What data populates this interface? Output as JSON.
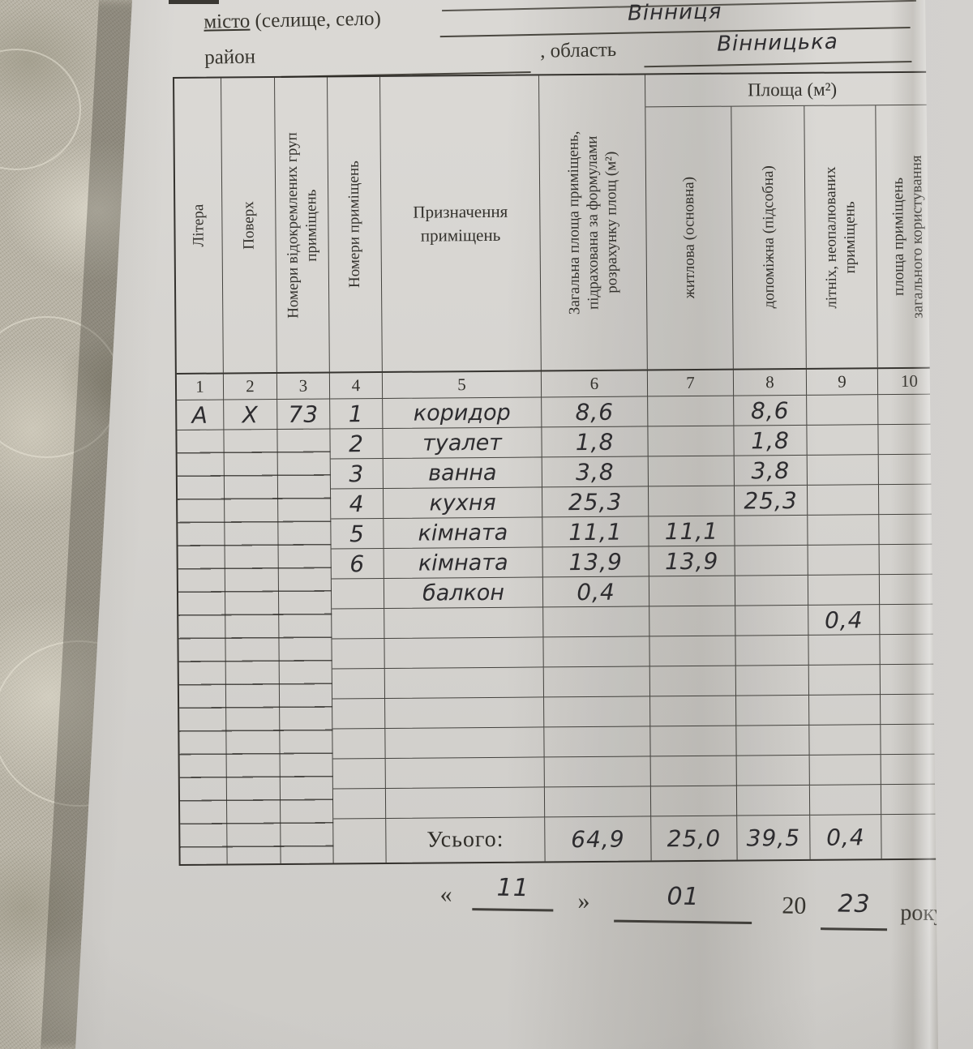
{
  "header": {
    "city_label_underlined": "місто",
    "city_label_rest": " (селище, село)",
    "city_value": "Вінниця",
    "district_label": "район",
    "oblast_label": ", область",
    "oblast_value": "Вінницька"
  },
  "table": {
    "area_group_header": "Площа (м²)",
    "col_numbers": [
      "1",
      "2",
      "3",
      "4",
      "5",
      "6",
      "7",
      "8",
      "9",
      "10"
    ],
    "col_labels": [
      "Літера",
      "Поверх",
      "Номери відокремлених груп приміщень",
      "Номери приміщень",
      "Призначення приміщень",
      "Загальна площа приміщень, підрахована за формулами розрахунку площ (м²)",
      "житлова (основна)",
      "допоміжна (підсобна)",
      "літніх, неопалюваних приміщень",
      "площа приміщень загального користування"
    ],
    "rows": [
      [
        "А",
        "Х",
        "73",
        "1",
        "коридор",
        "8,6",
        "",
        "8,6",
        "",
        ""
      ],
      [
        "",
        "",
        "",
        "2",
        "туалет",
        "1,8",
        "",
        "1,8",
        "",
        ""
      ],
      [
        "",
        "",
        "",
        "3",
        "ванна",
        "3,8",
        "",
        "3,8",
        "",
        ""
      ],
      [
        "",
        "",
        "",
        "4",
        "кухня",
        "25,3",
        "",
        "25,3",
        "",
        ""
      ],
      [
        "",
        "",
        "",
        "5",
        "кімната",
        "11,1",
        "11,1",
        "",
        "",
        ""
      ],
      [
        "",
        "",
        "",
        "6",
        "кімната",
        "13,9",
        "13,9",
        "",
        "",
        ""
      ],
      [
        "",
        "",
        "",
        "",
        "балкон",
        "0,4",
        "",
        "",
        "",
        ""
      ],
      [
        "",
        "",
        "",
        "",
        "",
        "",
        "",
        "",
        "0,4",
        ""
      ]
    ],
    "totals_label": "Усього:",
    "totals": [
      "64,9",
      "25,0",
      "39,5",
      "0,4"
    ]
  },
  "date_line": {
    "open_quote": "«",
    "day": "11",
    "close_quote": "»",
    "month": "01",
    "century": "20",
    "year": "23",
    "year_word": "року"
  }
}
